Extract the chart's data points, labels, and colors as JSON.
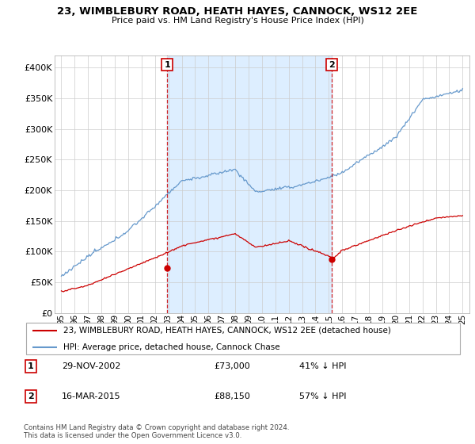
{
  "title": "23, WIMBLEBURY ROAD, HEATH HAYES, CANNOCK, WS12 2EE",
  "subtitle": "Price paid vs. HM Land Registry's House Price Index (HPI)",
  "hpi_label": "HPI: Average price, detached house, Cannock Chase",
  "sale_label": "23, WIMBLEBURY ROAD, HEATH HAYES, CANNOCK, WS12 2EE (detached house)",
  "footer": "Contains HM Land Registry data © Crown copyright and database right 2024.\nThis data is licensed under the Open Government Licence v3.0.",
  "sale_color": "#cc0000",
  "hpi_color": "#6699cc",
  "hpi_fill_color": "#ddeeff",
  "vline_color": "#cc0000",
  "annotation1": {
    "label": "1",
    "date_str": "29-NOV-2002",
    "price": "£73,000",
    "pct": "41% ↓ HPI",
    "x_year": 2002.91
  },
  "annotation2": {
    "label": "2",
    "date_str": "16-MAR-2015",
    "price": "£88,150",
    "pct": "57% ↓ HPI",
    "x_year": 2015.21
  },
  "ylim": [
    0,
    420000
  ],
  "xlim": [
    1994.5,
    2025.5
  ],
  "yticks": [
    0,
    50000,
    100000,
    150000,
    200000,
    250000,
    300000,
    350000,
    400000
  ],
  "ytick_labels": [
    "£0",
    "£50K",
    "£100K",
    "£150K",
    "£200K",
    "£250K",
    "£300K",
    "£350K",
    "£400K"
  ],
  "xtick_labels": [
    "95",
    "96",
    "97",
    "98",
    "99",
    "00",
    "01",
    "02",
    "03",
    "04",
    "05",
    "06",
    "07",
    "08",
    "09",
    "10",
    "11",
    "12",
    "13",
    "14",
    "15",
    "16",
    "17",
    "18",
    "19",
    "20",
    "21",
    "22",
    "23",
    "24",
    "25"
  ],
  "xticks": [
    1995,
    1996,
    1997,
    1998,
    1999,
    2000,
    2001,
    2002,
    2003,
    2004,
    2005,
    2006,
    2007,
    2008,
    2009,
    2010,
    2011,
    2012,
    2013,
    2014,
    2015,
    2016,
    2017,
    2018,
    2019,
    2020,
    2021,
    2022,
    2023,
    2024,
    2025
  ]
}
